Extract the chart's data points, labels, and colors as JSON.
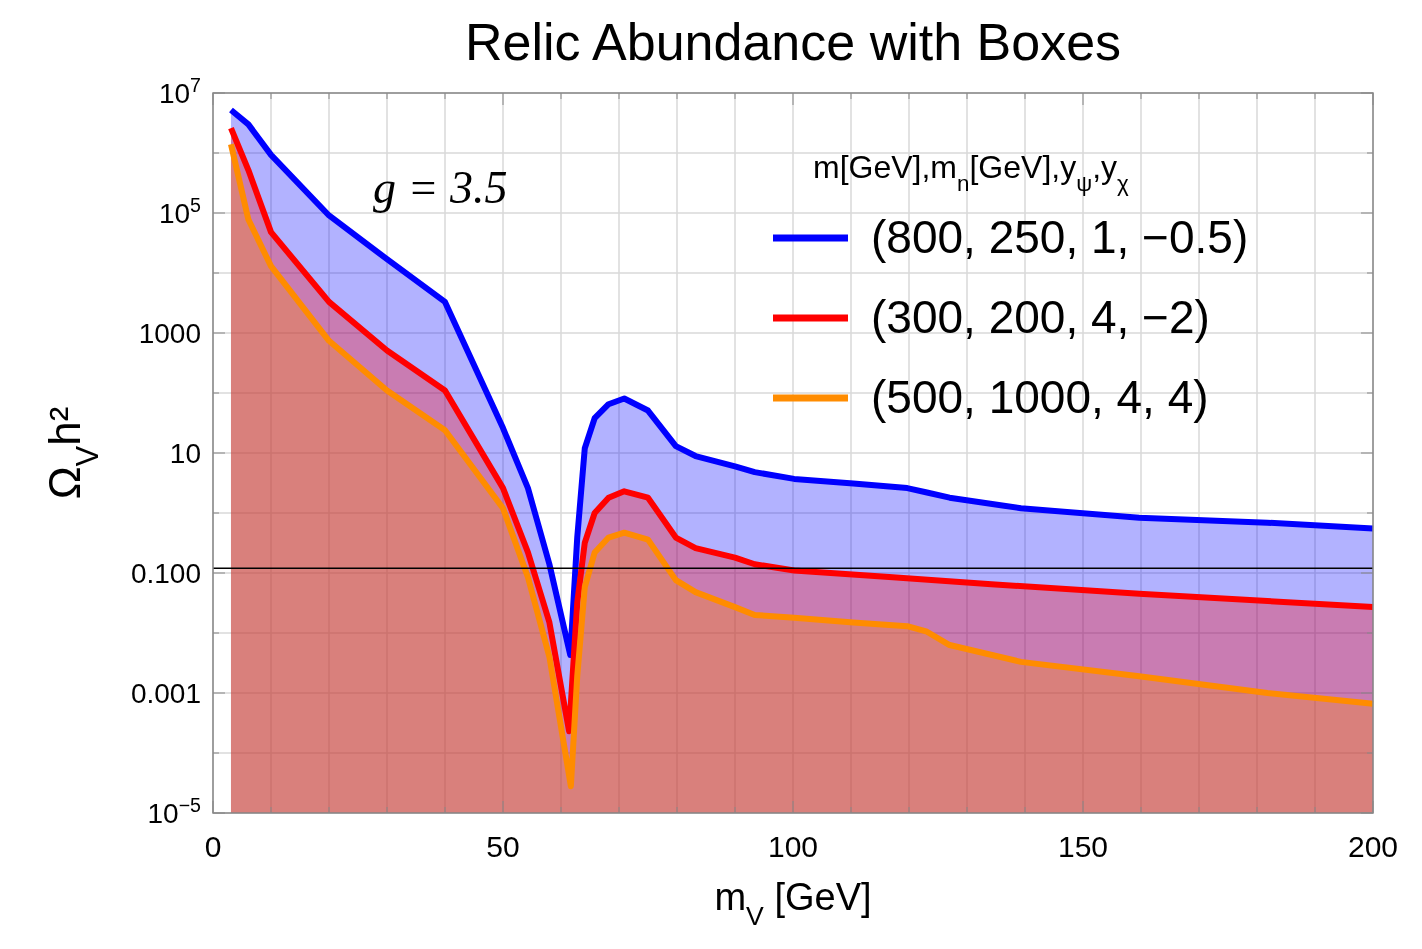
{
  "chart_data": {
    "type": "area",
    "title": "Relic Abundance with Boxes",
    "xlabel": "m$_{V}$ [GeV]",
    "ylabel": "Ω$_{V}$h²",
    "legend_title": "m[GeV],m$_{n}$[GeV],y$_{ψ}$,y$_{χ}$",
    "annotations": [
      "g = 3.5"
    ],
    "log": "y",
    "grid": true,
    "legend": "top right",
    "line_style": "solid",
    "xlim": [
      0,
      200
    ],
    "xticks": [
      0,
      {
        "value": 10,
        "label": null
      },
      {
        "value": 20,
        "label": null
      },
      {
        "value": 30,
        "label": null
      },
      {
        "value": 40,
        "label": null
      },
      50,
      {
        "value": 60,
        "label": null
      },
      {
        "value": 70,
        "label": null
      },
      {
        "value": 80,
        "label": null
      },
      {
        "value": 90,
        "label": null
      },
      100,
      {
        "value": 110,
        "label": null
      },
      {
        "value": 120,
        "label": null
      },
      {
        "value": 130,
        "label": null
      },
      {
        "value": 140,
        "label": null
      },
      150,
      {
        "value": 160,
        "label": null
      },
      {
        "value": 170,
        "label": null
      },
      {
        "value": 180,
        "label": null
      },
      {
        "value": 190,
        "label": null
      },
      200
    ],
    "ylim": [
      1e-05,
      10000000.0
    ],
    "yticks": [
      {
        "value": 1e-05,
        "label": "10$^{−5}$"
      },
      {
        "value": 0.0001,
        "label": null
      },
      {
        "value": 0.001,
        "label": "0.001"
      },
      {
        "value": 0.01,
        "label": null
      },
      {
        "value": 0.1,
        "label": "0.100"
      },
      {
        "value": 1,
        "label": null
      },
      10,
      {
        "value": 100,
        "label": null
      },
      1000,
      {
        "value": 10000,
        "label": null
      },
      {
        "value": 100000,
        "label": "10$^{5}$"
      },
      {
        "value": 1000000,
        "label": null
      },
      {
        "value": 10000000,
        "label": "10$^{7}$"
      }
    ],
    "ref_lines": [
      {
        "axis": "y",
        "value": 0.12,
        "color": "#000000"
      }
    ],
    "series": [
      {
        "name": "(800, 250, 1, −0.5)",
        "color": "#0000ff",
        "x": [
          3.1,
          6.1,
          10,
          20,
          30,
          40,
          50,
          54.3,
          58,
          61.6,
          62.8,
          64.1,
          65.8,
          68.2,
          70.9,
          75,
          79.8,
          83.2,
          90,
          93.4,
          100.2,
          110.4,
          119.7,
          123.1,
          127,
          139.3,
          159.7,
          181.8,
          200
        ],
        "values": [
          5200000.0,
          3000000.0,
          930000.0,
          91000.0,
          17000.0,
          3300,
          26,
          2.6,
          0.14,
          0.0043,
          0.39,
          12,
          38,
          65,
          81,
          51,
          13,
          8.9,
          6.0,
          4.8,
          3.7,
          3.1,
          2.6,
          2.2,
          1.8,
          1.2,
          0.83,
          0.69,
          0.55
        ]
      },
      {
        "name": "(300, 200, 4, −2)",
        "color": "#ff0000",
        "x": [
          3.1,
          6.1,
          10,
          20,
          30,
          40,
          50,
          54.3,
          58,
          61.4,
          62.8,
          64.1,
          65.8,
          68.2,
          70.9,
          75,
          79.8,
          83.2,
          90,
          93.4,
          100.2,
          117.2,
          134.2,
          159.7,
          200
        ],
        "values": [
          2600000.0,
          520000.0,
          48000.0,
          3300,
          510,
          110,
          2.6,
          0.22,
          0.015,
          0.00023,
          0.032,
          0.32,
          1.0,
          1.8,
          2.3,
          1.8,
          0.39,
          0.26,
          0.18,
          0.14,
          0.11,
          0.085,
          0.065,
          0.045,
          0.027
        ]
      },
      {
        "name": "(500, 1000, 4, 4)",
        "color": "#ff8c00",
        "x": [
          3.1,
          6.1,
          10,
          20,
          30,
          40,
          50,
          54.3,
          58,
          61.7,
          62.8,
          64.1,
          65.8,
          68.2,
          70.9,
          75,
          79.8,
          83.2,
          90,
          93.4,
          100.2,
          110.4,
          119.7,
          123.1,
          127,
          139.3,
          159.7,
          181.8,
          200
        ],
        "values": [
          1400000.0,
          78000.0,
          13000.0,
          740,
          110,
          24,
          1.2,
          0.085,
          0.004,
          2.8e-05,
          0.0019,
          0.058,
          0.22,
          0.39,
          0.47,
          0.36,
          0.076,
          0.048,
          0.027,
          0.02,
          0.018,
          0.015,
          0.013,
          0.0105,
          0.0063,
          0.0033,
          0.0019,
          0.001,
          0.00066
        ]
      }
    ]
  }
}
